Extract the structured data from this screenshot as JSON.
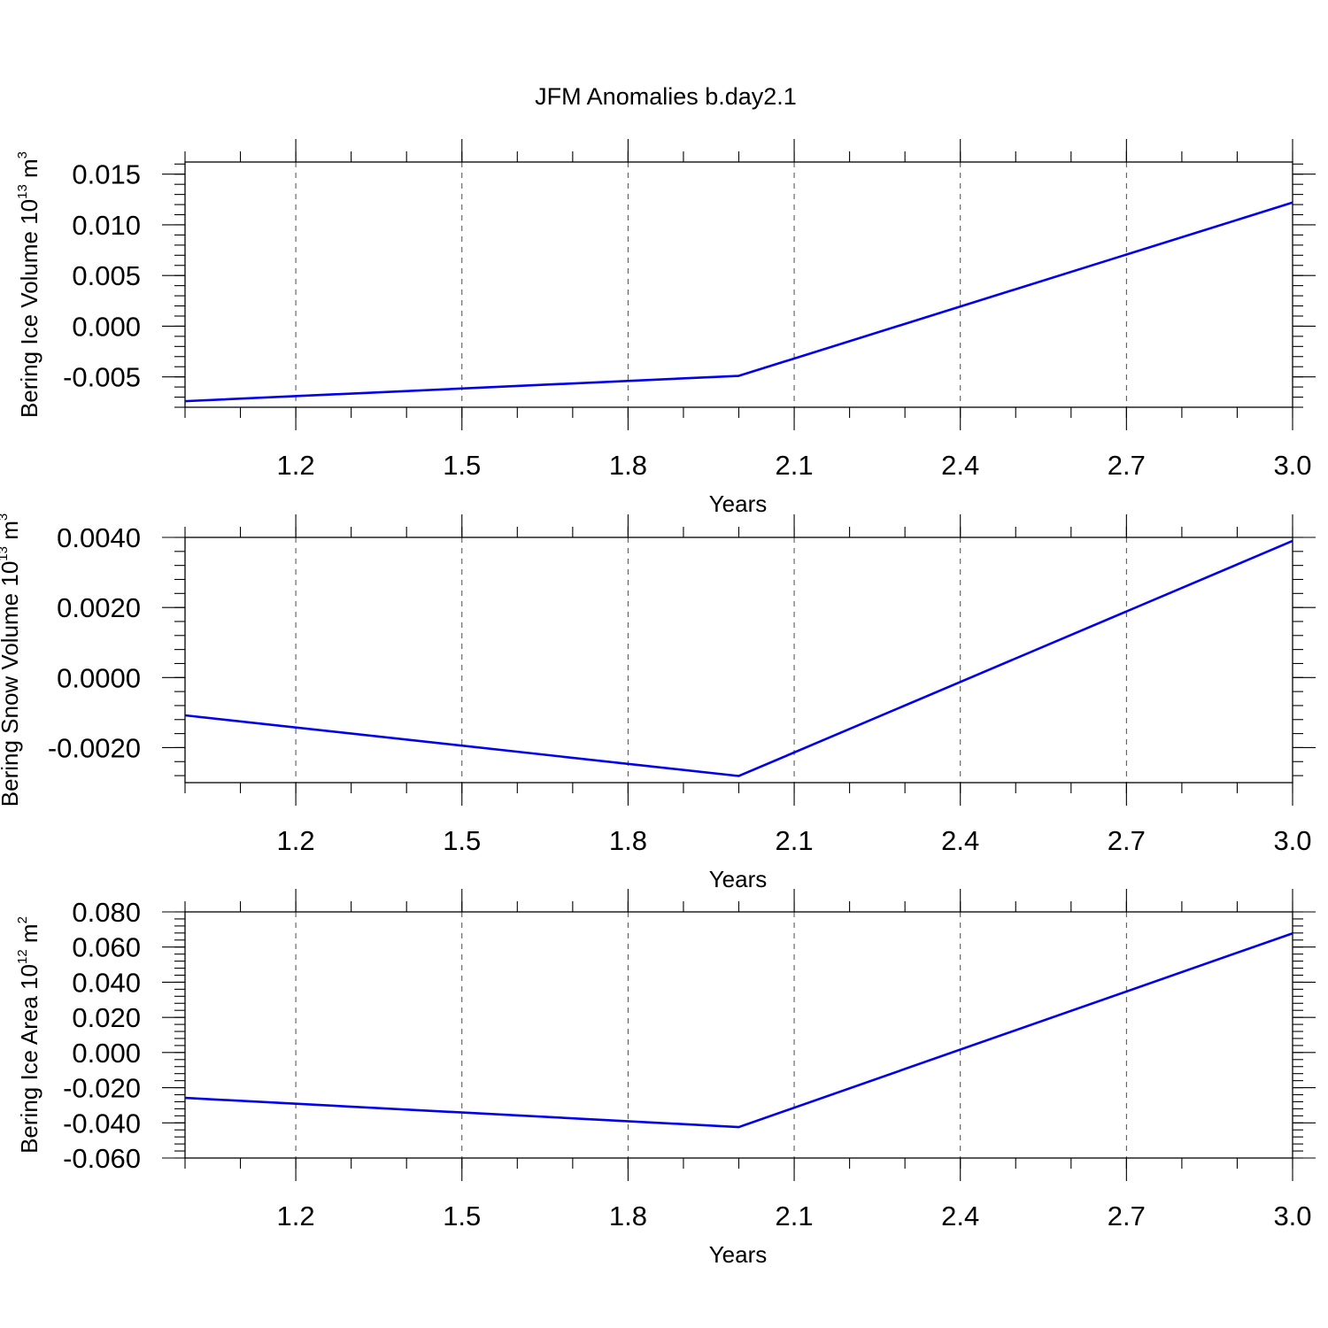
{
  "figure": {
    "title": "JFM Anomalies b.day2.1",
    "line_color": "#0000ee"
  },
  "chart_data": [
    {
      "type": "line",
      "title": "",
      "xlabel": "Years",
      "ylabel": "Bering Ice Volume 10",
      "ylabel_sup": "13",
      "ylabel_unit": "m",
      "ylabel_unit_sup": "3",
      "xlim": [
        1.0,
        3.0
      ],
      "ylim": [
        -0.008,
        0.0162
      ],
      "grid": true,
      "x_ticks": [
        "1.2",
        "1.5",
        "1.8",
        "2.1",
        "2.4",
        "2.7",
        "3.0"
      ],
      "y_ticks": [
        "0.015",
        "0.010",
        "0.005",
        "0.000",
        "-0.005"
      ],
      "y_tick_values": [
        0.015,
        0.01,
        0.005,
        0.0,
        -0.005
      ],
      "x_minor_step": 0.1,
      "y_minor_step": 0.001,
      "series": [
        {
          "x": [
            1.0,
            2.0,
            3.0
          ],
          "values": [
            -0.0074,
            -0.0049,
            0.0122
          ]
        }
      ]
    },
    {
      "type": "line",
      "title": "",
      "xlabel": "Years",
      "ylabel": "Bering Snow Volume 10",
      "ylabel_sup": "13",
      "ylabel_unit": "m",
      "ylabel_unit_sup": "3",
      "xlim": [
        1.0,
        3.0
      ],
      "ylim": [
        -0.003,
        0.004
      ],
      "grid": true,
      "x_ticks": [
        "1.2",
        "1.5",
        "1.8",
        "2.1",
        "2.4",
        "2.7",
        "3.0"
      ],
      "y_ticks": [
        "0.0040",
        "0.0020",
        "0.0000",
        "-0.0020"
      ],
      "y_tick_values": [
        0.004,
        0.002,
        0.0,
        -0.002
      ],
      "x_minor_step": 0.1,
      "y_minor_step": 0.0004,
      "series": [
        {
          "x": [
            1.0,
            2.0,
            3.0
          ],
          "values": [
            -0.00108,
            -0.00281,
            0.0039
          ]
        }
      ]
    },
    {
      "type": "line",
      "title": "",
      "xlabel": "Years",
      "ylabel": "Bering Ice Area 10",
      "ylabel_sup": "12",
      "ylabel_unit": "m",
      "ylabel_unit_sup": "2",
      "xlim": [
        1.0,
        3.0
      ],
      "ylim": [
        -0.06,
        0.08
      ],
      "grid": true,
      "x_ticks": [
        "1.2",
        "1.5",
        "1.8",
        "2.1",
        "2.4",
        "2.7",
        "3.0"
      ],
      "y_ticks": [
        "0.080",
        "0.060",
        "0.040",
        "0.020",
        "0.000",
        "-0.020",
        "-0.040",
        "-0.060"
      ],
      "y_tick_values": [
        0.08,
        0.06,
        0.04,
        0.02,
        0.0,
        -0.02,
        -0.04,
        -0.06
      ],
      "x_minor_step": 0.1,
      "y_minor_step": 0.004,
      "series": [
        {
          "x": [
            1.0,
            2.0,
            3.0
          ],
          "values": [
            -0.0258,
            -0.0424,
            0.0678
          ]
        }
      ]
    }
  ]
}
